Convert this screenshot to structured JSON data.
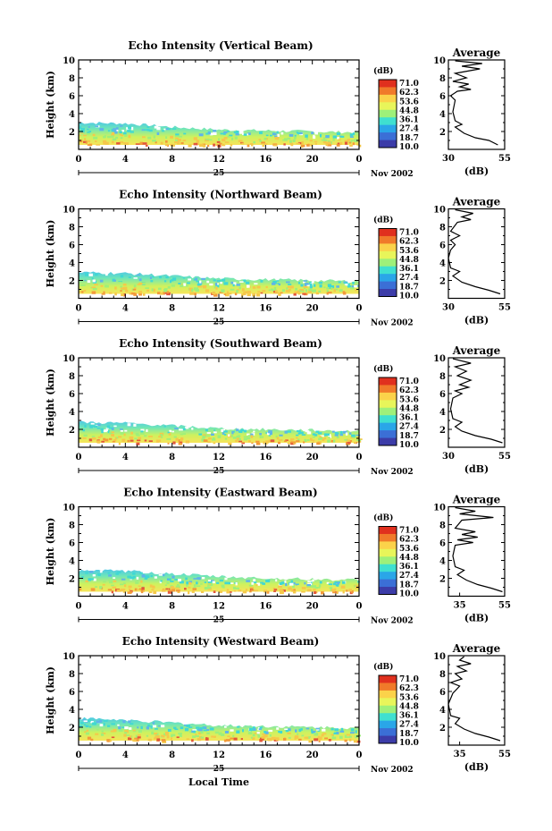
{
  "figure": {
    "xlabel": "Local Time",
    "date_label": "Nov 2002",
    "day_label": "25",
    "colorbar_unit": "(dB)",
    "colorbar_labels": [
      "71.0",
      "62.3",
      "53.6",
      "44.8",
      "36.1",
      "27.4",
      "18.7",
      "10.0"
    ],
    "colorbar_colors": [
      "#e0301e",
      "#f07a2a",
      "#fbd24a",
      "#e8f55a",
      "#9ef07a",
      "#3fe0d0",
      "#2aa6e8",
      "#3b6fd6",
      "#3c3ca8"
    ],
    "avg_title": "Average",
    "avg_xlabel": "(dB)"
  },
  "chart_data": [
    {
      "type": "heatmap",
      "title": "Echo Intensity (Vertical Beam)",
      "ylabel": "Height (km)",
      "xlim": [
        0,
        24
      ],
      "ylim": [
        0,
        10
      ],
      "xticks": [
        "0",
        "4",
        "8",
        "12",
        "16",
        "20",
        "0"
      ],
      "yticks": [
        "2",
        "4",
        "6",
        "8",
        "10"
      ],
      "echo_top_km": [
        [
          0,
          3.0
        ],
        [
          4,
          2.9
        ],
        [
          8,
          2.5
        ],
        [
          12,
          2.2
        ],
        [
          16,
          2.1
        ],
        [
          20,
          2.0
        ],
        [
          24,
          1.9
        ]
      ],
      "echo_base_km": 0.5,
      "average": {
        "type": "line",
        "xlim": [
          30,
          55
        ],
        "xticks": [
          "30",
          "55"
        ],
        "yticks": [
          "2",
          "4",
          "6",
          "8",
          "10"
        ],
        "profile": [
          [
            52,
            0.5
          ],
          [
            48,
            1.0
          ],
          [
            42,
            1.3
          ],
          [
            37,
            1.8
          ],
          [
            33,
            2.5
          ],
          [
            36,
            2.8
          ],
          [
            33,
            3.2
          ],
          [
            32,
            4.2
          ],
          [
            33,
            5.5
          ],
          [
            31,
            6.0
          ],
          [
            34,
            6.5
          ],
          [
            40,
            6.7
          ],
          [
            35,
            7.0
          ],
          [
            39,
            7.3
          ],
          [
            32,
            7.6
          ],
          [
            38,
            8.0
          ],
          [
            33,
            8.5
          ],
          [
            44,
            9.0
          ],
          [
            36,
            9.3
          ],
          [
            45,
            9.6
          ],
          [
            33,
            9.9
          ]
        ]
      }
    },
    {
      "type": "heatmap",
      "title": "Echo Intensity (Northward Beam)",
      "ylabel": "Height (km)",
      "xlim": [
        0,
        24
      ],
      "ylim": [
        0,
        10
      ],
      "xticks": [
        "0",
        "4",
        "8",
        "12",
        "16",
        "20",
        "0"
      ],
      "yticks": [
        "2",
        "4",
        "6",
        "8",
        "10"
      ],
      "echo_top_km": [
        [
          0,
          2.9
        ],
        [
          4,
          2.8
        ],
        [
          8,
          2.5
        ],
        [
          12,
          2.2
        ],
        [
          16,
          2.1
        ],
        [
          20,
          2.0
        ],
        [
          24,
          1.9
        ]
      ],
      "echo_base_km": 0.5,
      "average": {
        "type": "line",
        "xlim": [
          30,
          55
        ],
        "xticks": [
          "30",
          "55"
        ],
        "yticks": [
          "2",
          "4",
          "6",
          "8",
          "10"
        ],
        "profile": [
          [
            53,
            0.5
          ],
          [
            48,
            0.9
          ],
          [
            42,
            1.3
          ],
          [
            36,
            1.8
          ],
          [
            32,
            2.5
          ],
          [
            35,
            3.0
          ],
          [
            31,
            3.4
          ],
          [
            30,
            4.5
          ],
          [
            31,
            5.4
          ],
          [
            33,
            6.0
          ],
          [
            31,
            6.5
          ],
          [
            35,
            7.0
          ],
          [
            31,
            7.5
          ],
          [
            34,
            8.5
          ],
          [
            40,
            8.8
          ],
          [
            36,
            9.1
          ],
          [
            41,
            9.5
          ],
          [
            33,
            9.9
          ]
        ]
      }
    },
    {
      "type": "heatmap",
      "title": "Echo Intensity (Southward Beam)",
      "ylabel": "Height (km)",
      "xlim": [
        0,
        24
      ],
      "ylim": [
        0,
        10
      ],
      "xticks": [
        "0",
        "4",
        "8",
        "12",
        "16",
        "20",
        "0"
      ],
      "yticks": [
        "2",
        "4",
        "6",
        "8",
        "10"
      ],
      "echo_top_km": [
        [
          0,
          2.8
        ],
        [
          4,
          2.7
        ],
        [
          8,
          2.4
        ],
        [
          12,
          2.1
        ],
        [
          16,
          2.0
        ],
        [
          20,
          1.9
        ],
        [
          24,
          1.8
        ]
      ],
      "echo_base_km": 0.5,
      "average": {
        "type": "line",
        "xlim": [
          30,
          55
        ],
        "xticks": [
          "30",
          "55"
        ],
        "yticks": [
          "2",
          "4",
          "6",
          "8",
          "10"
        ],
        "profile": [
          [
            54,
            0.5
          ],
          [
            49,
            0.9
          ],
          [
            42,
            1.3
          ],
          [
            36,
            1.8
          ],
          [
            33,
            2.3
          ],
          [
            36,
            2.8
          ],
          [
            32,
            3.2
          ],
          [
            31,
            4.3
          ],
          [
            32,
            5.5
          ],
          [
            36,
            6.0
          ],
          [
            33,
            6.3
          ],
          [
            39,
            6.7
          ],
          [
            35,
            7.0
          ],
          [
            40,
            7.5
          ],
          [
            34,
            8.0
          ],
          [
            38,
            8.5
          ],
          [
            33,
            9.0
          ],
          [
            40,
            9.4
          ],
          [
            32,
            9.9
          ]
        ]
      }
    },
    {
      "type": "heatmap",
      "title": "Echo Intensity (Eastward Beam)",
      "ylabel": "Height (km)",
      "xlim": [
        0,
        24
      ],
      "ylim": [
        0,
        10
      ],
      "xticks": [
        "0",
        "4",
        "8",
        "12",
        "16",
        "20",
        "0"
      ],
      "yticks": [
        "2",
        "4",
        "6",
        "8",
        "10"
      ],
      "echo_top_km": [
        [
          0,
          2.9
        ],
        [
          4,
          2.8
        ],
        [
          8,
          2.5
        ],
        [
          12,
          2.2
        ],
        [
          16,
          2.0
        ],
        [
          20,
          1.9
        ],
        [
          24,
          1.8
        ]
      ],
      "echo_base_km": 0.5,
      "average": {
        "type": "line",
        "xlim": [
          30,
          55
        ],
        "xticks": [
          "35",
          "55"
        ],
        "yticks": [
          "2",
          "4",
          "6",
          "8",
          "10"
        ],
        "profile": [
          [
            54,
            0.5
          ],
          [
            49,
            0.9
          ],
          [
            43,
            1.3
          ],
          [
            38,
            1.8
          ],
          [
            34,
            2.4
          ],
          [
            37,
            2.9
          ],
          [
            33,
            3.3
          ],
          [
            32,
            4.5
          ],
          [
            33,
            5.7
          ],
          [
            41,
            6.0
          ],
          [
            34,
            6.3
          ],
          [
            43,
            6.6
          ],
          [
            36,
            6.9
          ],
          [
            42,
            7.2
          ],
          [
            33,
            7.6
          ],
          [
            36,
            8.5
          ],
          [
            50,
            8.8
          ],
          [
            35,
            9.2
          ],
          [
            42,
            9.5
          ],
          [
            33,
            9.9
          ]
        ]
      }
    },
    {
      "type": "heatmap",
      "title": "Echo Intensity (Westward Beam)",
      "ylabel": "Height (km)",
      "xlim": [
        0,
        24
      ],
      "ylim": [
        0,
        10
      ],
      "xticks": [
        "0",
        "4",
        "8",
        "12",
        "16",
        "20",
        "0"
      ],
      "yticks": [
        "2",
        "4",
        "6",
        "8",
        "10"
      ],
      "echo_top_km": [
        [
          0,
          3.0
        ],
        [
          4,
          2.8
        ],
        [
          8,
          2.5
        ],
        [
          12,
          2.2
        ],
        [
          16,
          2.1
        ],
        [
          20,
          2.0
        ],
        [
          24,
          1.9
        ]
      ],
      "echo_base_km": 0.5,
      "average": {
        "type": "line",
        "xlim": [
          30,
          55
        ],
        "xticks": [
          "35",
          "55"
        ],
        "yticks": [
          "2",
          "4",
          "6",
          "8",
          "10"
        ],
        "profile": [
          [
            53,
            0.5
          ],
          [
            48,
            0.9
          ],
          [
            42,
            1.3
          ],
          [
            37,
            1.8
          ],
          [
            33,
            2.4
          ],
          [
            35,
            3.0
          ],
          [
            31,
            3.3
          ],
          [
            30,
            4.6
          ],
          [
            32,
            5.8
          ],
          [
            35,
            6.6
          ],
          [
            31,
            7.0
          ],
          [
            36,
            7.4
          ],
          [
            33,
            8.0
          ],
          [
            38,
            8.3
          ],
          [
            34,
            8.8
          ],
          [
            40,
            9.1
          ],
          [
            35,
            9.5
          ],
          [
            37,
            9.9
          ]
        ]
      }
    }
  ]
}
